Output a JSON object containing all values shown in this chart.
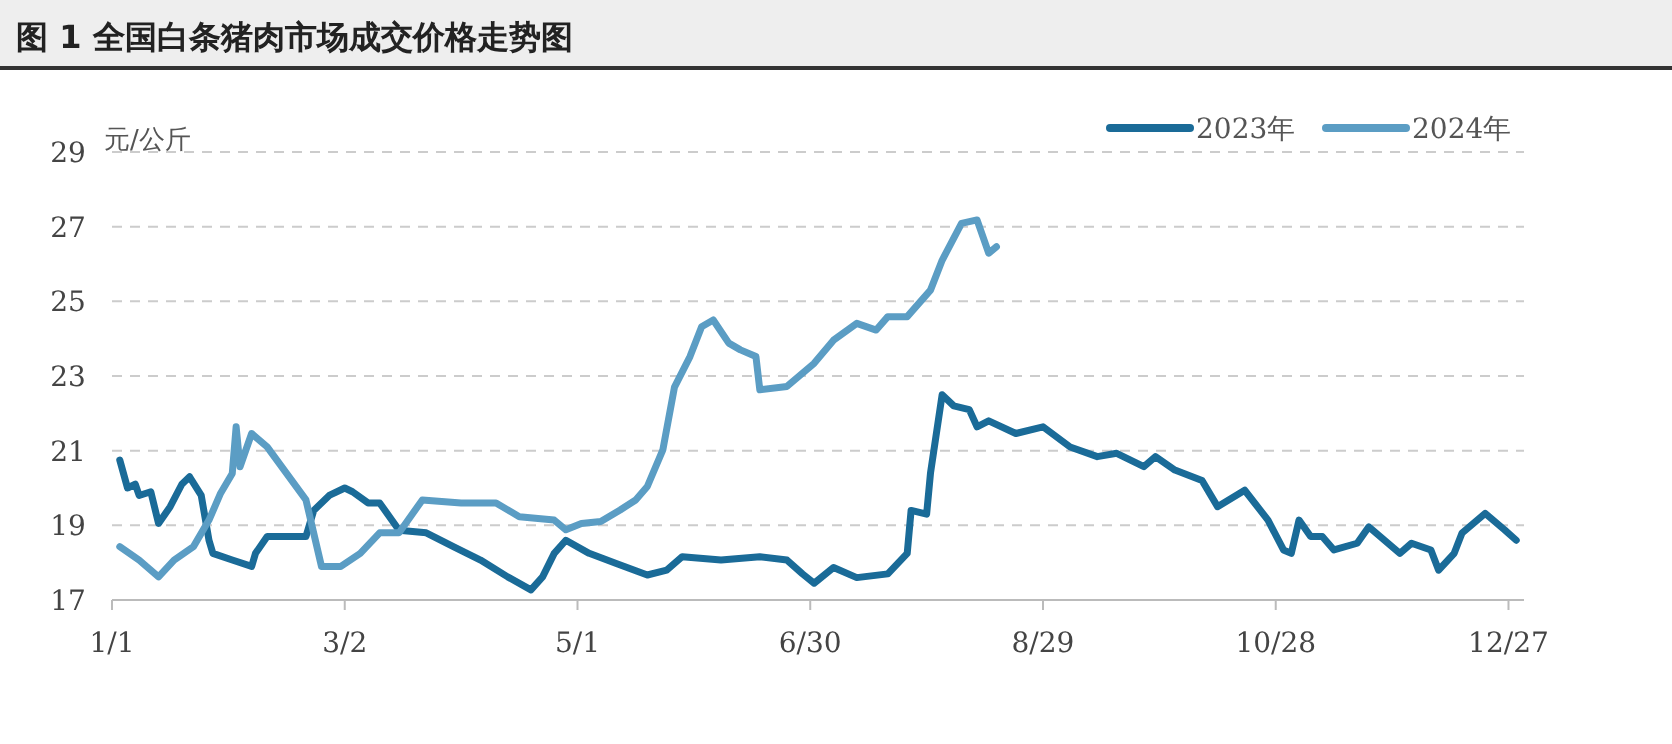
{
  "chart_data": {
    "type": "line",
    "title": "图 1  全国白条猪肉市场成交价格走势图",
    "ylabel": "元/公斤",
    "xlim": [
      "--01-01",
      "--12-31"
    ],
    "xticks": [
      {
        "value": "--01-01",
        "label": "1/1"
      },
      {
        "value": "--03-02",
        "label": "3/2"
      },
      {
        "value": "--05-01",
        "label": "5/1"
      },
      {
        "value": "--06-30",
        "label": "6/30"
      },
      {
        "value": "--08-29",
        "label": "8/29"
      },
      {
        "value": "--10-28",
        "label": "10/28"
      },
      {
        "value": "--12-27",
        "label": "12/27"
      }
    ],
    "ylim": [
      17,
      29
    ],
    "yticks": [
      17,
      19,
      21,
      23,
      25,
      27,
      29
    ],
    "grid": "y",
    "legend": "top right",
    "line_style": "solid",
    "marker": "none",
    "series": [
      {
        "name": "2023年",
        "color": "#1a6b98",
        "x": [
          "--01-03",
          "--01-05",
          "--01-07",
          "--01-08",
          "--01-11",
          "--01-13",
          "--01-16",
          "--01-19",
          "--01-21",
          "--01-24",
          "--01-26",
          "--01-27",
          "--02-01",
          "--02-06",
          "--02-07",
          "--02-10",
          "--02-20",
          "--02-22",
          "--02-26",
          "--03-02",
          "--03-04",
          "--03-08",
          "--03-11",
          "--03-16",
          "--03-23",
          "--03-30",
          "--04-06",
          "--04-13",
          "--04-19",
          "--04-22",
          "--04-25",
          "--04-28",
          "--05-04",
          "--05-11",
          "--05-19",
          "--05-24",
          "--05-28",
          "--06-07",
          "--06-17",
          "--06-24",
          "--06-28",
          "--07-01",
          "--07-06",
          "--07-12",
          "--07-20",
          "--07-25",
          "--07-26",
          "--07-30",
          "--07-31",
          "--08-03",
          "--08-06",
          "--08-10",
          "--08-12",
          "--08-15",
          "--08-22",
          "--08-29",
          "--09-05",
          "--09-12",
          "--09-17",
          "--09-24",
          "--09-27",
          "--10-02",
          "--10-09",
          "--10-13",
          "--10-20",
          "--10-26",
          "--10-30",
          "--11-01",
          "--11-03",
          "--11-06",
          "--11-09",
          "--11-12",
          "--11-18",
          "--11-21",
          "--11-29",
          "--12-02",
          "--12-07",
          "--12-09",
          "--12-13",
          "--12-15",
          "--12-21",
          "--12-26",
          "--12-29"
        ],
        "values": [
          20.75,
          20.0,
          20.1,
          19.8,
          19.9,
          19.05,
          19.5,
          20.1,
          20.3,
          19.8,
          18.6,
          18.25,
          18.07,
          17.9,
          18.25,
          18.7,
          18.7,
          19.4,
          19.8,
          20.0,
          19.9,
          19.6,
          19.6,
          18.87,
          18.8,
          18.43,
          18.07,
          17.62,
          17.27,
          17.62,
          18.25,
          18.6,
          18.25,
          17.98,
          17.67,
          17.8,
          18.16,
          18.07,
          18.16,
          18.07,
          17.7,
          17.45,
          17.87,
          17.6,
          17.7,
          18.25,
          19.4,
          19.3,
          20.4,
          22.5,
          22.2,
          22.1,
          21.64,
          21.8,
          21.46,
          21.64,
          21.1,
          20.84,
          20.93,
          20.57,
          20.84,
          20.48,
          20.2,
          19.5,
          19.94,
          19.14,
          18.34,
          18.25,
          19.14,
          18.7,
          18.7,
          18.34,
          18.52,
          18.96,
          18.25,
          18.52,
          18.34,
          17.8,
          18.25,
          18.79,
          19.32,
          18.88,
          18.6
        ]
      },
      {
        "name": "2024年",
        "color": "#5b9dc4",
        "x": [
          "--01-03",
          "--01-08",
          "--01-13",
          "--01-17",
          "--01-22",
          "--01-26",
          "--01-29",
          "--02-01",
          "--02-02",
          "--02-03",
          "--02-06",
          "--02-10",
          "--02-20",
          "--02-24",
          "--03-01",
          "--03-06",
          "--03-11",
          "--03-16",
          "--03-22",
          "--04-01",
          "--04-10",
          "--04-16",
          "--04-25",
          "--04-28",
          "--05-02",
          "--05-07",
          "--05-12",
          "--05-16",
          "--05-19",
          "--05-23",
          "--05-26",
          "--05-30",
          "--06-02",
          "--06-05",
          "--06-09",
          "--06-12",
          "--06-16",
          "--06-17",
          "--06-24",
          "--07-01",
          "--07-06",
          "--07-12",
          "--07-17",
          "--07-20",
          "--07-25",
          "--07-31",
          "--08-03",
          "--08-08",
          "--08-12",
          "--08-15",
          "--08-17"
        ],
        "values": [
          18.43,
          18.07,
          17.62,
          18.07,
          18.43,
          19.14,
          19.86,
          20.39,
          21.64,
          20.57,
          21.46,
          21.1,
          19.68,
          17.9,
          17.9,
          18.25,
          18.8,
          18.8,
          19.68,
          19.6,
          19.6,
          19.23,
          19.14,
          18.88,
          19.05,
          19.1,
          19.41,
          19.68,
          20.04,
          21.02,
          22.7,
          23.52,
          24.32,
          24.5,
          23.88,
          23.7,
          23.52,
          22.63,
          22.72,
          23.34,
          23.96,
          24.41,
          24.23,
          24.59,
          24.59,
          25.3,
          26.1,
          27.09,
          27.18,
          26.29,
          26.46
        ]
      }
    ]
  }
}
